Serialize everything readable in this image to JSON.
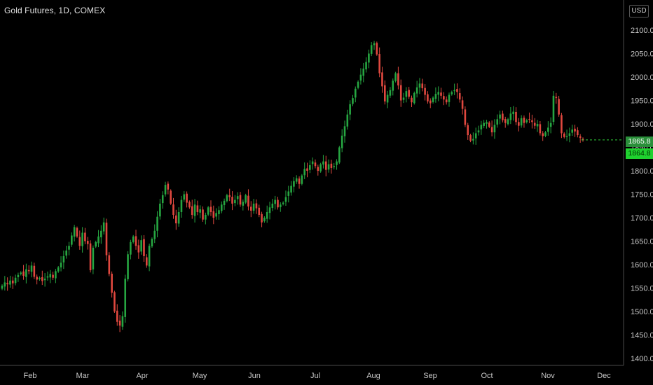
{
  "header": {
    "title": "Gold Futures, 1D, COMEX",
    "currency": "USD"
  },
  "price_badges": {
    "last": "1865.8",
    "current": "1864.8"
  },
  "colors": {
    "up": "#26a641",
    "down": "#e0483f",
    "last_line": "#2fcf3a",
    "badge_last": "#2a8f3a",
    "badge_current": "#1fd12f"
  },
  "chart_data": {
    "type": "candlestick",
    "title": "Gold Futures, 1D, COMEX",
    "ylim": [
      1375,
      2130
    ],
    "y_ticks": [
      "1400.0",
      "1450.0",
      "1500.0",
      "1550.0",
      "1600.0",
      "1650.0",
      "1700.0",
      "1750.0",
      "1800.0",
      "1850.0",
      "1900.0",
      "1950.0",
      "2000.0",
      "2050.0",
      "2100.0"
    ],
    "x_ticks": [
      "Feb",
      "Mar",
      "Apr",
      "May",
      "Jun",
      "Jul",
      "Aug",
      "Sep",
      "Oct",
      "Nov",
      "Dec"
    ],
    "last_price": 1865.8,
    "closes": [
      1555,
      1562,
      1558,
      1566,
      1560,
      1572,
      1578,
      1583,
      1576,
      1590,
      1586,
      1598,
      1574,
      1568,
      1572,
      1565,
      1570,
      1575,
      1580,
      1572,
      1586,
      1594,
      1604,
      1618,
      1630,
      1640,
      1662,
      1680,
      1660,
      1640,
      1668,
      1650,
      1644,
      1588,
      1636,
      1648,
      1660,
      1672,
      1690,
      1620,
      1580,
      1540,
      1500,
      1478,
      1470,
      1490,
      1570,
      1622,
      1648,
      1660,
      1640,
      1626,
      1652,
      1618,
      1598,
      1640,
      1655,
      1672,
      1702,
      1730,
      1748,
      1770,
      1760,
      1730,
      1706,
      1688,
      1712,
      1738,
      1750,
      1732,
      1722,
      1706,
      1728,
      1712,
      1718,
      1696,
      1706,
      1722,
      1712,
      1700,
      1710,
      1716,
      1728,
      1736,
      1748,
      1744,
      1730,
      1738,
      1746,
      1728,
      1734,
      1748,
      1724,
      1715,
      1730,
      1720,
      1706,
      1690,
      1700,
      1712,
      1722,
      1730,
      1738,
      1722,
      1728,
      1732,
      1744,
      1756,
      1768,
      1778,
      1784,
      1772,
      1790,
      1804,
      1800,
      1812,
      1820,
      1810,
      1800,
      1814,
      1820,
      1802,
      1814,
      1806,
      1810,
      1820,
      1850,
      1875,
      1895,
      1920,
      1942,
      1955,
      1975,
      1990,
      2005,
      2018,
      2032,
      2050,
      2068,
      2072,
      2048,
      2008,
      1980,
      1948,
      1962,
      1972,
      1992,
      2008,
      1982,
      1950,
      1956,
      1970,
      1958,
      1946,
      1966,
      1978,
      1986,
      1976,
      1962,
      1948,
      1944,
      1956,
      1964,
      1968,
      1960,
      1952,
      1946,
      1962,
      1968,
      1972,
      1968,
      1952,
      1932,
      1898,
      1876,
      1864,
      1868,
      1880,
      1886,
      1898,
      1902,
      1904,
      1894,
      1882,
      1898,
      1910,
      1920,
      1908,
      1902,
      1910,
      1922,
      1926,
      1904,
      1896,
      1912,
      1902,
      1908,
      1910,
      1904,
      1896,
      1900,
      1880,
      1874,
      1882,
      1892,
      1902,
      1960,
      1955,
      1920,
      1880,
      1872,
      1874,
      1880,
      1888,
      1884,
      1876,
      1870,
      1865
    ]
  }
}
